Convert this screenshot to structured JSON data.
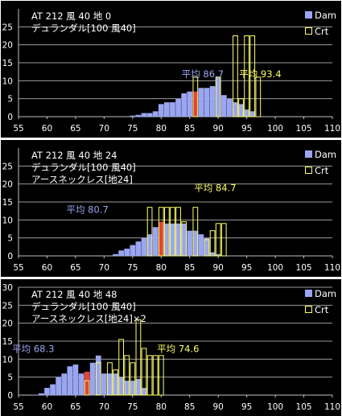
{
  "chart_data": [
    {
      "type": "bar",
      "title_lines": [
        "AT  212   風 40   地 0",
        "デュランダル[100 風40]"
      ],
      "legend": {
        "dam": "Dam",
        "crt": "Crt"
      },
      "avg_dam_label": "平均 86.7",
      "avg_crt_label": "平均 93.4",
      "x_ticks": [
        55,
        60,
        65,
        70,
        75,
        80,
        85,
        90,
        95,
        100,
        105,
        110
      ],
      "y_ticks": [
        0,
        5,
        10,
        15,
        20,
        25
      ],
      "xlim": [
        55,
        110
      ],
      "ylim": [
        0,
        30
      ],
      "series": [
        {
          "name": "Dam",
          "x": [
            75,
            76,
            77,
            78,
            79,
            80,
            81,
            82,
            83,
            84,
            85,
            86,
            87,
            88,
            89,
            90,
            91,
            92,
            93,
            94,
            95,
            96
          ],
          "values": [
            0.3,
            0.5,
            1,
            1,
            1.5,
            3.5,
            4,
            4,
            5,
            6.5,
            7,
            7,
            8,
            8,
            8.5,
            11,
            6,
            5,
            4,
            3.5,
            2,
            1.5
          ]
        },
        {
          "name": "Crt",
          "x": [
            86,
            90,
            93,
            94,
            95,
            96,
            97
          ],
          "values": [
            11,
            11,
            22.5,
            5,
            22.5,
            22.5,
            11
          ]
        }
      ],
      "overlap_x": [
        86
      ],
      "avg_dam_pos": [
        86.7,
        11
      ],
      "avg_crt_pos": [
        93.4,
        11
      ]
    },
    {
      "type": "bar",
      "title_lines": [
        "AT  212   風 40   地 24",
        "デュランダル[100 風40]",
        "アースネックレス[地24]"
      ],
      "legend": {
        "dam": "Dam",
        "crt": "Crt"
      },
      "avg_dam_label": "平均 80.7",
      "avg_crt_label": "平均 84.7",
      "x_ticks": [
        55,
        60,
        65,
        70,
        75,
        80,
        85,
        90,
        95,
        100,
        105,
        110
      ],
      "y_ticks": [
        0,
        5,
        10,
        15,
        20,
        25
      ],
      "xlim": [
        55,
        110
      ],
      "ylim": [
        0,
        30
      ],
      "series": [
        {
          "name": "Dam",
          "x": [
            72,
            73,
            74,
            75,
            76,
            77,
            78,
            79,
            80,
            81,
            82,
            83,
            84,
            85,
            86,
            87,
            88,
            89,
            90
          ],
          "values": [
            0.5,
            1.5,
            2,
            3,
            4,
            5,
            6,
            8,
            9.5,
            9,
            9,
            9,
            9,
            7,
            7,
            6,
            5,
            1,
            0.5
          ]
        },
        {
          "name": "Crt",
          "x": [
            78,
            80,
            81,
            82,
            83,
            84,
            86,
            88,
            89,
            90,
            91
          ],
          "values": [
            13.5,
            13.5,
            13.5,
            13.5,
            13.5,
            9.5,
            13.5,
            4.5,
            7,
            9,
            9
          ]
        }
      ],
      "overlap_x": [
        80
      ],
      "avg_dam_pos": [
        66.5,
        12
      ],
      "avg_crt_pos": [
        85.5,
        18
      ]
    },
    {
      "type": "bar",
      "title_lines": [
        "AT  212   風 40   地 48",
        "デュランダル[100 風40]",
        "アースネックレス[地24]×2"
      ],
      "legend": {
        "dam": "Dam",
        "crt": "Crt"
      },
      "avg_dam_label": "平均 68.3",
      "avg_crt_label": "平均 74.6",
      "x_ticks": [
        55,
        60,
        65,
        70,
        75,
        80,
        85,
        90,
        95,
        100,
        105,
        110
      ],
      "y_ticks": [
        0,
        5,
        10,
        15,
        20,
        25,
        30
      ],
      "xlim": [
        55,
        110
      ],
      "ylim": [
        0,
        30
      ],
      "series": [
        {
          "name": "Dam",
          "x": [
            59,
            60,
            61,
            62,
            63,
            64,
            65,
            66,
            67,
            68,
            69,
            70,
            71,
            72,
            73,
            74,
            75,
            76,
            77
          ],
          "values": [
            0.5,
            2,
            3,
            5,
            6,
            8,
            8.5,
            6,
            6.5,
            9,
            11,
            6,
            6,
            6,
            5,
            4,
            4,
            4.5,
            2
          ]
        },
        {
          "name": "Crt",
          "x": [
            67,
            69,
            71,
            72,
            73,
            74,
            75,
            76,
            77,
            78,
            79,
            80
          ],
          "values": [
            4,
            9,
            9,
            7,
            15.5,
            11,
            9,
            21,
            13,
            11,
            11,
            11
          ]
        }
      ],
      "overlap_x": [
        67
      ],
      "avg_dam_pos": [
        57,
        12
      ],
      "avg_crt_pos": [
        79,
        12
      ]
    }
  ]
}
